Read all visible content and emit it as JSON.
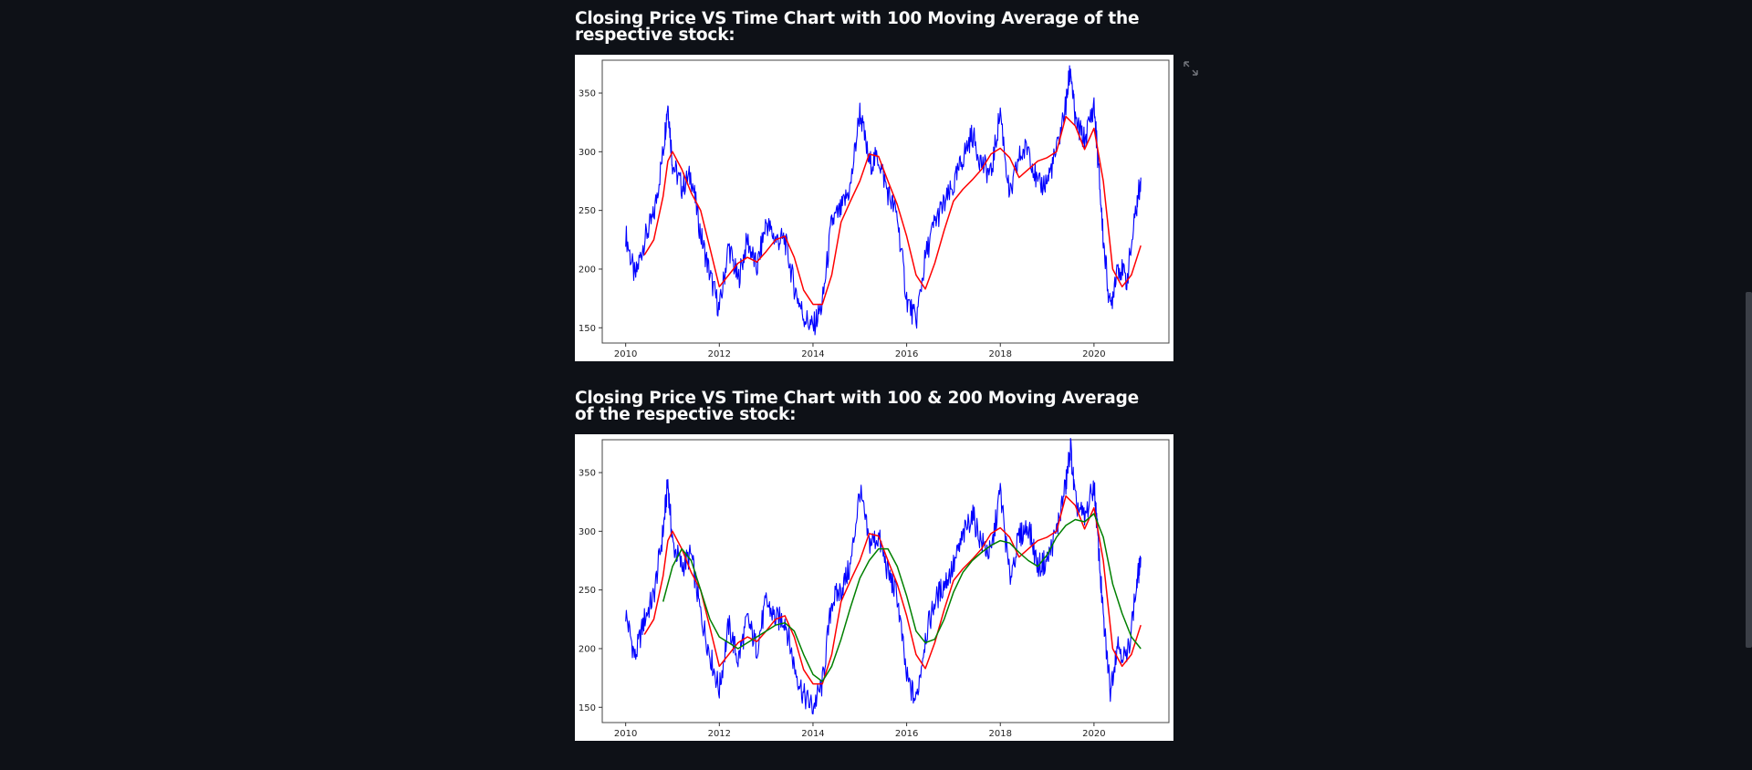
{
  "charts": [
    {
      "heading": "Closing Price VS Time Chart with 100 Moving Average of the respective stock:",
      "expand_icon": "expand-icon"
    },
    {
      "heading": "Closing Price VS Time Chart with 100 & 200 Moving Average of the respective stock:"
    }
  ],
  "chart_data": [
    {
      "type": "line",
      "title": "",
      "xlabel": "",
      "ylabel": "",
      "xlim": [
        2009.5,
        2021.6
      ],
      "ylim": [
        137,
        378
      ],
      "x_ticks": [
        2010,
        2012,
        2014,
        2016,
        2018,
        2020
      ],
      "y_ticks": [
        150,
        200,
        250,
        300,
        350
      ],
      "grid": false,
      "legend": "none",
      "series": [
        {
          "color": "#0000ff",
          "x": [
            2010.0,
            2010.2,
            2010.4,
            2010.6,
            2010.8,
            2010.9,
            2011.0,
            2011.2,
            2011.4,
            2011.6,
            2011.8,
            2012.0,
            2012.2,
            2012.4,
            2012.6,
            2012.8,
            2013.0,
            2013.2,
            2013.4,
            2013.6,
            2013.8,
            2014.0,
            2014.2,
            2014.4,
            2014.6,
            2014.8,
            2015.0,
            2015.2,
            2015.4,
            2015.6,
            2015.8,
            2016.0,
            2016.2,
            2016.4,
            2016.6,
            2016.8,
            2017.0,
            2017.2,
            2017.4,
            2017.6,
            2017.8,
            2018.0,
            2018.2,
            2018.4,
            2018.6,
            2018.8,
            2019.0,
            2019.2,
            2019.4,
            2019.5,
            2019.6,
            2019.8,
            2020.0,
            2020.1,
            2020.2,
            2020.35,
            2020.5,
            2020.7,
            2020.9,
            2021.0
          ],
          "y": [
            230,
            192,
            225,
            245,
            300,
            342,
            290,
            270,
            280,
            230,
            195,
            165,
            220,
            190,
            225,
            200,
            240,
            225,
            225,
            185,
            160,
            150,
            170,
            240,
            250,
            270,
            335,
            290,
            295,
            265,
            245,
            175,
            155,
            210,
            240,
            255,
            270,
            295,
            315,
            290,
            280,
            335,
            260,
            295,
            305,
            270,
            275,
            300,
            340,
            372,
            325,
            310,
            340,
            285,
            225,
            165,
            205,
            190,
            250,
            278
          ]
        },
        {
          "color": "#ff0000",
          "x": [
            2010.4,
            2010.6,
            2010.8,
            2010.9,
            2011.0,
            2011.2,
            2011.4,
            2011.6,
            2011.8,
            2012.0,
            2012.2,
            2012.4,
            2012.6,
            2012.8,
            2013.0,
            2013.2,
            2013.4,
            2013.6,
            2013.8,
            2014.0,
            2014.2,
            2014.4,
            2014.6,
            2014.8,
            2015.0,
            2015.2,
            2015.4,
            2015.6,
            2015.8,
            2016.0,
            2016.2,
            2016.4,
            2016.6,
            2016.8,
            2017.0,
            2017.2,
            2017.4,
            2017.6,
            2017.8,
            2018.0,
            2018.2,
            2018.4,
            2018.6,
            2018.8,
            2019.0,
            2019.2,
            2019.4,
            2019.6,
            2019.8,
            2020.0,
            2020.2,
            2020.4,
            2020.6,
            2020.8,
            2021.0
          ],
          "y": [
            212,
            225,
            262,
            292,
            300,
            285,
            265,
            250,
            218,
            185,
            195,
            205,
            210,
            206,
            215,
            225,
            228,
            210,
            182,
            170,
            170,
            195,
            240,
            258,
            275,
            298,
            296,
            275,
            255,
            228,
            195,
            183,
            205,
            233,
            258,
            268,
            276,
            285,
            298,
            303,
            295,
            278,
            285,
            292,
            295,
            300,
            330,
            322,
            302,
            320,
            275,
            200,
            185,
            195,
            220
          ]
        }
      ]
    },
    {
      "type": "line",
      "title": "",
      "xlabel": "",
      "ylabel": "",
      "xlim": [
        2009.5,
        2021.6
      ],
      "ylim": [
        137,
        378
      ],
      "x_ticks": [
        2010,
        2012,
        2014,
        2016,
        2018,
        2020
      ],
      "y_ticks": [
        150,
        200,
        250,
        300,
        350
      ],
      "grid": false,
      "legend": "none",
      "series": [
        {
          "color": "#0000ff",
          "x": [
            2010.0,
            2010.2,
            2010.4,
            2010.6,
            2010.8,
            2010.9,
            2011.0,
            2011.2,
            2011.4,
            2011.6,
            2011.8,
            2012.0,
            2012.2,
            2012.4,
            2012.6,
            2012.8,
            2013.0,
            2013.2,
            2013.4,
            2013.6,
            2013.8,
            2014.0,
            2014.2,
            2014.4,
            2014.6,
            2014.8,
            2015.0,
            2015.2,
            2015.4,
            2015.6,
            2015.8,
            2016.0,
            2016.2,
            2016.4,
            2016.6,
            2016.8,
            2017.0,
            2017.2,
            2017.4,
            2017.6,
            2017.8,
            2018.0,
            2018.2,
            2018.4,
            2018.6,
            2018.8,
            2019.0,
            2019.2,
            2019.4,
            2019.5,
            2019.6,
            2019.8,
            2020.0,
            2020.1,
            2020.2,
            2020.35,
            2020.5,
            2020.7,
            2020.9,
            2021.0
          ],
          "y": [
            230,
            192,
            225,
            245,
            300,
            342,
            290,
            270,
            280,
            230,
            195,
            165,
            220,
            190,
            225,
            200,
            240,
            225,
            225,
            185,
            160,
            150,
            170,
            240,
            250,
            270,
            335,
            290,
            295,
            265,
            245,
            175,
            155,
            210,
            240,
            255,
            270,
            295,
            315,
            290,
            280,
            335,
            260,
            295,
            305,
            270,
            275,
            300,
            340,
            372,
            325,
            310,
            340,
            285,
            225,
            165,
            205,
            190,
            250,
            278
          ]
        },
        {
          "color": "#ff0000",
          "x": [
            2010.4,
            2010.6,
            2010.8,
            2010.9,
            2011.0,
            2011.2,
            2011.4,
            2011.6,
            2011.8,
            2012.0,
            2012.2,
            2012.4,
            2012.6,
            2012.8,
            2013.0,
            2013.2,
            2013.4,
            2013.6,
            2013.8,
            2014.0,
            2014.2,
            2014.4,
            2014.6,
            2014.8,
            2015.0,
            2015.2,
            2015.4,
            2015.6,
            2015.8,
            2016.0,
            2016.2,
            2016.4,
            2016.6,
            2016.8,
            2017.0,
            2017.2,
            2017.4,
            2017.6,
            2017.8,
            2018.0,
            2018.2,
            2018.4,
            2018.6,
            2018.8,
            2019.0,
            2019.2,
            2019.4,
            2019.6,
            2019.8,
            2020.0,
            2020.2,
            2020.4,
            2020.6,
            2020.8,
            2021.0
          ],
          "y": [
            212,
            225,
            262,
            292,
            300,
            285,
            265,
            250,
            218,
            185,
            195,
            205,
            210,
            206,
            215,
            225,
            228,
            210,
            182,
            170,
            170,
            195,
            240,
            258,
            275,
            298,
            296,
            275,
            255,
            228,
            195,
            183,
            205,
            233,
            258,
            268,
            276,
            285,
            298,
            303,
            295,
            278,
            285,
            292,
            295,
            300,
            330,
            322,
            302,
            320,
            275,
            200,
            185,
            195,
            220
          ]
        },
        {
          "color": "#008000",
          "x": [
            2010.8,
            2011.0,
            2011.2,
            2011.4,
            2011.6,
            2011.8,
            2012.0,
            2012.2,
            2012.4,
            2012.6,
            2012.8,
            2013.0,
            2013.2,
            2013.4,
            2013.6,
            2013.8,
            2014.0,
            2014.2,
            2014.4,
            2014.6,
            2014.8,
            2015.0,
            2015.2,
            2015.4,
            2015.6,
            2015.8,
            2016.0,
            2016.2,
            2016.4,
            2016.6,
            2016.8,
            2017.0,
            2017.2,
            2017.4,
            2017.6,
            2017.8,
            2018.0,
            2018.2,
            2018.4,
            2018.6,
            2018.8,
            2019.0,
            2019.2,
            2019.4,
            2019.6,
            2019.8,
            2020.0,
            2020.2,
            2020.4,
            2020.6,
            2020.8,
            2021.0
          ],
          "y": [
            240,
            270,
            285,
            275,
            250,
            225,
            210,
            205,
            200,
            205,
            210,
            215,
            220,
            222,
            215,
            195,
            178,
            172,
            185,
            208,
            235,
            260,
            275,
            285,
            285,
            270,
            245,
            215,
            205,
            208,
            225,
            248,
            265,
            275,
            282,
            288,
            292,
            290,
            282,
            275,
            270,
            280,
            295,
            305,
            310,
            308,
            315,
            295,
            255,
            230,
            210,
            200
          ]
        }
      ]
    }
  ]
}
